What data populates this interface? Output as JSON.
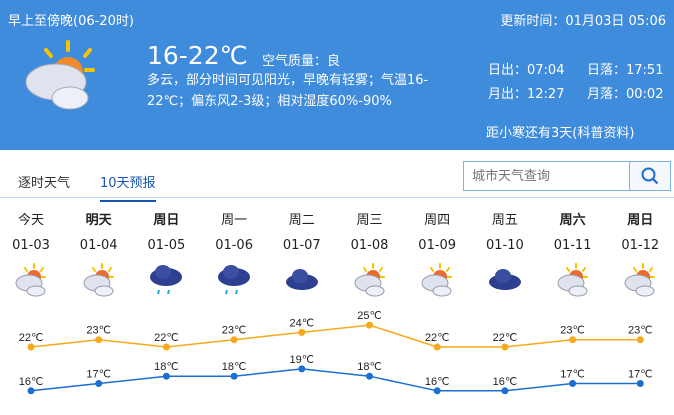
{
  "header": {
    "period": "早上至傍晚(06-20时)",
    "update": "更新时间：01月03日 05:06",
    "icon": "partly-cloudy-icon",
    "temp": "16-22℃",
    "air_quality": "空气质量：良",
    "desc": "多云，部分时间可见阳光，早晚有轻雾；气温16-22℃；偏东风2-3级；相对湿度60%-90%",
    "sunrise": "日出：07:04",
    "sunset": "日落：17:51",
    "moonrise": "月出：12:27",
    "moonset": "月落：00:02",
    "solar_term": "距小寒还有3天(科普资料)"
  },
  "tabs": [
    {
      "label": "逐时天气",
      "active": false
    },
    {
      "label": "10天预报",
      "active": true
    }
  ],
  "search": {
    "placeholder": "城市天气查询",
    "icon": "search-icon"
  },
  "days": [
    {
      "name": "今天",
      "date": "01-03",
      "icon": "partly-cloudy",
      "bold": false
    },
    {
      "name": "明天",
      "date": "01-04",
      "icon": "partly-cloudy",
      "bold": true
    },
    {
      "name": "周日",
      "date": "01-05",
      "icon": "rain",
      "bold": true
    },
    {
      "name": "周一",
      "date": "01-06",
      "icon": "rain",
      "bold": false
    },
    {
      "name": "周二",
      "date": "01-07",
      "icon": "cloudy",
      "bold": false
    },
    {
      "name": "周三",
      "date": "01-08",
      "icon": "partly-cloudy",
      "bold": false
    },
    {
      "name": "周四",
      "date": "01-09",
      "icon": "partly-cloudy",
      "bold": false
    },
    {
      "name": "周五",
      "date": "01-10",
      "icon": "cloudy",
      "bold": false
    },
    {
      "name": "周六",
      "date": "01-11",
      "icon": "partly-cloudy",
      "bold": true
    },
    {
      "name": "周日",
      "date": "01-12",
      "icon": "partly-cloudy",
      "bold": true
    }
  ],
  "chart_data": {
    "type": "line",
    "categories": [
      "01-03",
      "01-04",
      "01-05",
      "01-06",
      "01-07",
      "01-08",
      "01-09",
      "01-10",
      "01-11",
      "01-12"
    ],
    "unit": "℃",
    "series": [
      {
        "values": [
          22,
          23,
          22,
          23,
          24,
          25,
          22,
          22,
          23,
          23
        ],
        "color": "#f7a81b"
      },
      {
        "values": [
          16,
          17,
          18,
          18,
          19,
          18,
          16,
          16,
          17,
          17
        ],
        "color": "#1a6fd1"
      }
    ]
  }
}
